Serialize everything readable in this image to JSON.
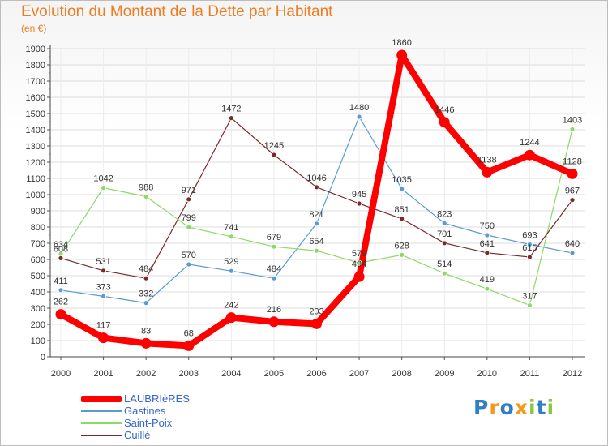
{
  "chart_data": {
    "type": "line",
    "title": "Evolution du Montant de la Dette par Habitant",
    "subtitle": "(en €)",
    "x": [
      "2000",
      "2001",
      "2002",
      "2003",
      "2004",
      "2005",
      "2006",
      "2007",
      "2008",
      "2009",
      "2010",
      "2011",
      "2012"
    ],
    "ylim": [
      0,
      1900
    ],
    "yticks": [
      0,
      100,
      200,
      300,
      400,
      500,
      600,
      700,
      800,
      900,
      1000,
      1100,
      1200,
      1300,
      1400,
      1500,
      1600,
      1700,
      1800,
      1900
    ],
    "grid": true,
    "legend_position": "bottom-left",
    "series": [
      {
        "name": "LAUBRIèRES",
        "color": "#ff0000",
        "values": [
          262,
          117,
          83,
          68,
          242,
          216,
          203,
          494,
          1860,
          1446,
          1138,
          1244,
          1128
        ]
      },
      {
        "name": "Gastines",
        "color": "#5a9bd4",
        "values": [
          411,
          373,
          332,
          570,
          529,
          484,
          821,
          1480,
          1035,
          823,
          750,
          693,
          640
        ]
      },
      {
        "name": "Saint-Poix",
        "color": "#8cd966",
        "values": [
          634,
          1042,
          988,
          799,
          741,
          679,
          654,
          579,
          628,
          514,
          419,
          317,
          1403
        ]
      },
      {
        "name": "Cuillé",
        "color": "#7a2a2a",
        "values": [
          608,
          531,
          484,
          971,
          1472,
          1245,
          1046,
          945,
          851,
          701,
          641,
          615,
          967
        ]
      }
    ]
  },
  "logo": {
    "letters": [
      "P",
      "r",
      "o",
      "x",
      "i",
      "t",
      "i"
    ],
    "colors": [
      "#2f7fc1",
      "#f39a1e",
      "#2f7fc1",
      "#f39a1e",
      "#8cc63f",
      "#2f7fc1",
      "#8cc63f"
    ]
  }
}
